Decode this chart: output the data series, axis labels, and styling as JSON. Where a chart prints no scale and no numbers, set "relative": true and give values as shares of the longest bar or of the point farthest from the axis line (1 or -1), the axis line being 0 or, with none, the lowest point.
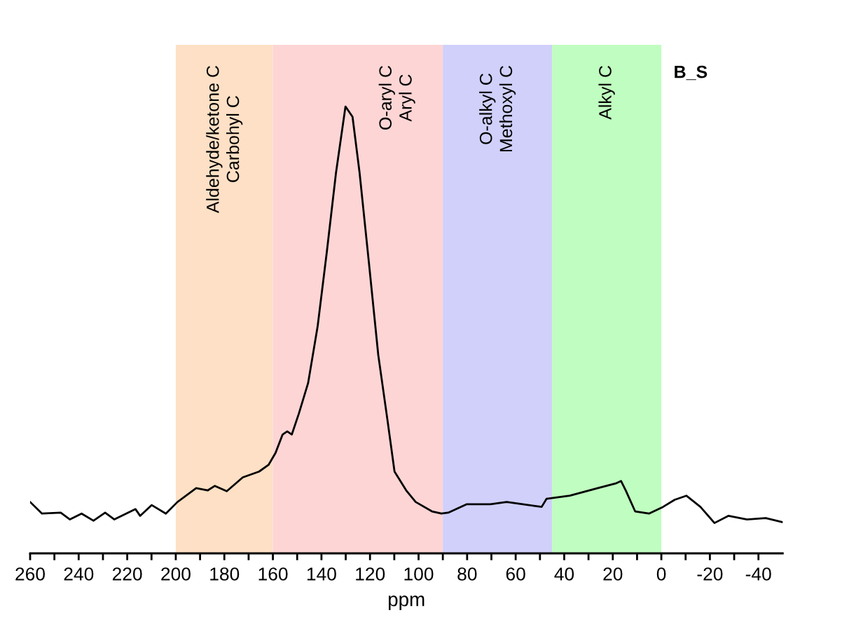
{
  "chart_data": {
    "type": "line",
    "relative": true,
    "xlabel": "ppm",
    "xlim": [
      260,
      -50
    ],
    "xticks": [
      260,
      {
        "value": 250,
        "label": null
      },
      240,
      {
        "value": 230,
        "label": null
      },
      220,
      {
        "value": 210,
        "label": null
      },
      200,
      {
        "value": 190,
        "label": null
      },
      180,
      {
        "value": 170,
        "label": null
      },
      160,
      {
        "value": 150,
        "label": null
      },
      140,
      {
        "value": 130,
        "label": null
      },
      120,
      {
        "value": 110,
        "label": null
      },
      100,
      {
        "value": 90,
        "label": null
      },
      80,
      {
        "value": 70,
        "label": null
      },
      60,
      {
        "value": 50,
        "label": null
      },
      40,
      {
        "value": 30,
        "label": null
      },
      20,
      {
        "value": 10,
        "label": null
      },
      0,
      {
        "value": -10,
        "label": null
      },
      -20,
      {
        "value": -30,
        "label": null
      },
      -40
    ],
    "x": [
      260,
      255.1,
      247.4,
      243.6,
      238.8,
      233.9,
      229.1,
      225.3,
      216.6,
      214.7,
      209.9,
      204.1,
      199.3,
      191.6,
      186.8,
      183.9,
      179.0,
      172.4,
      165.7,
      161.8,
      158.9,
      156.0,
      154.1,
      152.2,
      149.3,
      145.5,
      141.6,
      137.8,
      134.0,
      130.1,
      127.2,
      124.3,
      120.5,
      116.6,
      112.8,
      109.9,
      105.1,
      101.2,
      94.5,
      90.6,
      87.8,
      80.1,
      70.4,
      63.7,
      49.3,
      47.3,
      37.7,
      26.2,
      18.5,
      16.6,
      14.6,
      10.8,
      5.1,
      -0.7,
      -5.5,
      -10.3,
      -16.1,
      -21.9,
      -27.6,
      -35.3,
      -43.0,
      -49.7
    ],
    "series": [
      {
        "color": "#000000",
        "values": [
          0.115,
          0.089,
          0.091,
          0.076,
          0.089,
          0.073,
          0.091,
          0.076,
          0.099,
          0.084,
          0.108,
          0.089,
          0.115,
          0.146,
          0.141,
          0.151,
          0.139,
          0.17,
          0.183,
          0.198,
          0.225,
          0.266,
          0.273,
          0.266,
          0.313,
          0.381,
          0.507,
          0.674,
          0.852,
          1.0,
          0.977,
          0.852,
          0.653,
          0.444,
          0.298,
          0.183,
          0.141,
          0.115,
          0.094,
          0.089,
          0.091,
          0.11,
          0.11,
          0.115,
          0.104,
          0.122,
          0.129,
          0.146,
          0.157,
          0.162,
          0.14,
          0.094,
          0.089,
          0.104,
          0.12,
          0.129,
          0.104,
          0.068,
          0.084,
          0.076,
          0.079,
          0.07
        ]
      }
    ],
    "bands": [
      {
        "axis": "x",
        "from": 200,
        "to": 160,
        "label": "Aldehyde/ketone C\nCarbohyl C",
        "color": "#fde0c5"
      },
      {
        "axis": "x",
        "from": 160,
        "to": 90,
        "label": "O-aryl C\nAryl C",
        "color": "#fdd5d5"
      },
      {
        "axis": "x",
        "from": 90,
        "to": 45,
        "label": "O-alkyl C\nMethoxyl C",
        "color": "#d0d0fb"
      },
      {
        "axis": "x",
        "from": 45,
        "to": 0,
        "label": "Alkyl C",
        "color": "#c0fdc0"
      }
    ],
    "annotations": [
      "B_S"
    ]
  }
}
